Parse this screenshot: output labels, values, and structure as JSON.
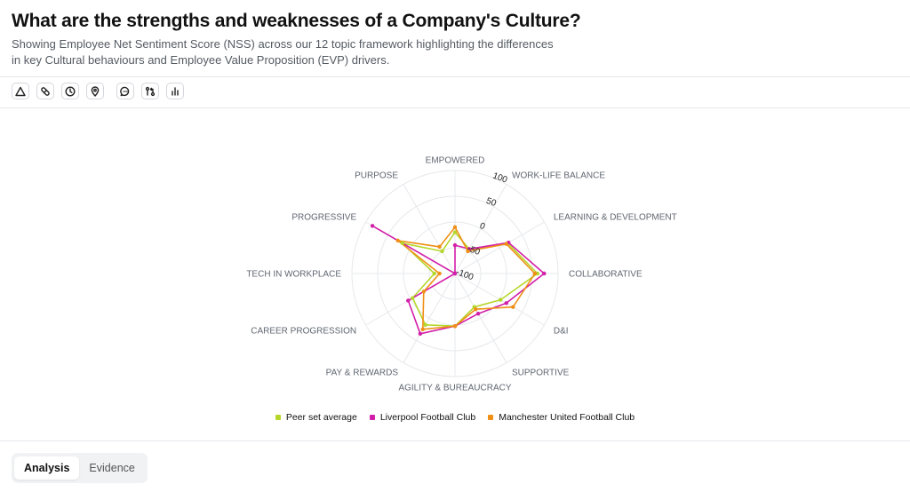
{
  "header": {
    "title": "What are the strengths and weaknesses of a Company's Culture?",
    "subtitle": "Showing Employee Net Sentiment Score (NSS) across our 12 topic framework highlighting the differences in key Cultural behaviours and Employee Value Proposition (EVP) drivers."
  },
  "toolbar": {
    "icons": [
      "triangle-icon",
      "pill-icon",
      "clock-icon",
      "map-pin-icon",
      "message-icon",
      "git-compare-icon",
      "bar-chart-icon"
    ]
  },
  "colors": {
    "peer": "#b5d62a",
    "liverpool": "#d21ea8",
    "manchester": "#ef8f16"
  },
  "chart_data": {
    "type": "radar",
    "categories": [
      "EMPOWERED",
      "WORK-LIFE BALANCE",
      "LEARNING & DEVELOPMENT",
      "COLLABORATIVE",
      "D&I",
      "SUPPORTIVE",
      "AGILITY & BUREAUCRACY",
      "PAY & REWARDS",
      "CAREER PROGRESSION",
      "TECH IN WORKPLACE",
      "PROGRESSIVE",
      "PURPOSE"
    ],
    "rlim": [
      -100,
      100
    ],
    "rticks": [
      -100,
      -50,
      0,
      50,
      100
    ],
    "grid": true,
    "legend_position": "bottom",
    "series": [
      {
        "name": "Peer set average",
        "color": "#b5d62a",
        "values": [
          -20,
          -45,
          18,
          60,
          2,
          -25,
          2,
          15,
          -5,
          -60,
          18,
          -50
        ]
      },
      {
        "name": "Liverpool Football Club",
        "color": "#d21ea8",
        "values": [
          -45,
          -45,
          20,
          73,
          15,
          -10,
          2,
          35,
          5,
          -100,
          85,
          -100
        ]
      },
      {
        "name": "Manchester United Football Club",
        "color": "#ef8f16",
        "values": [
          -10,
          -50,
          15,
          55,
          30,
          -20,
          2,
          25,
          -30,
          -70,
          28,
          -40
        ]
      }
    ]
  },
  "tabs": [
    {
      "label": "Analysis",
      "active": true
    },
    {
      "label": "Evidence",
      "active": false
    }
  ]
}
